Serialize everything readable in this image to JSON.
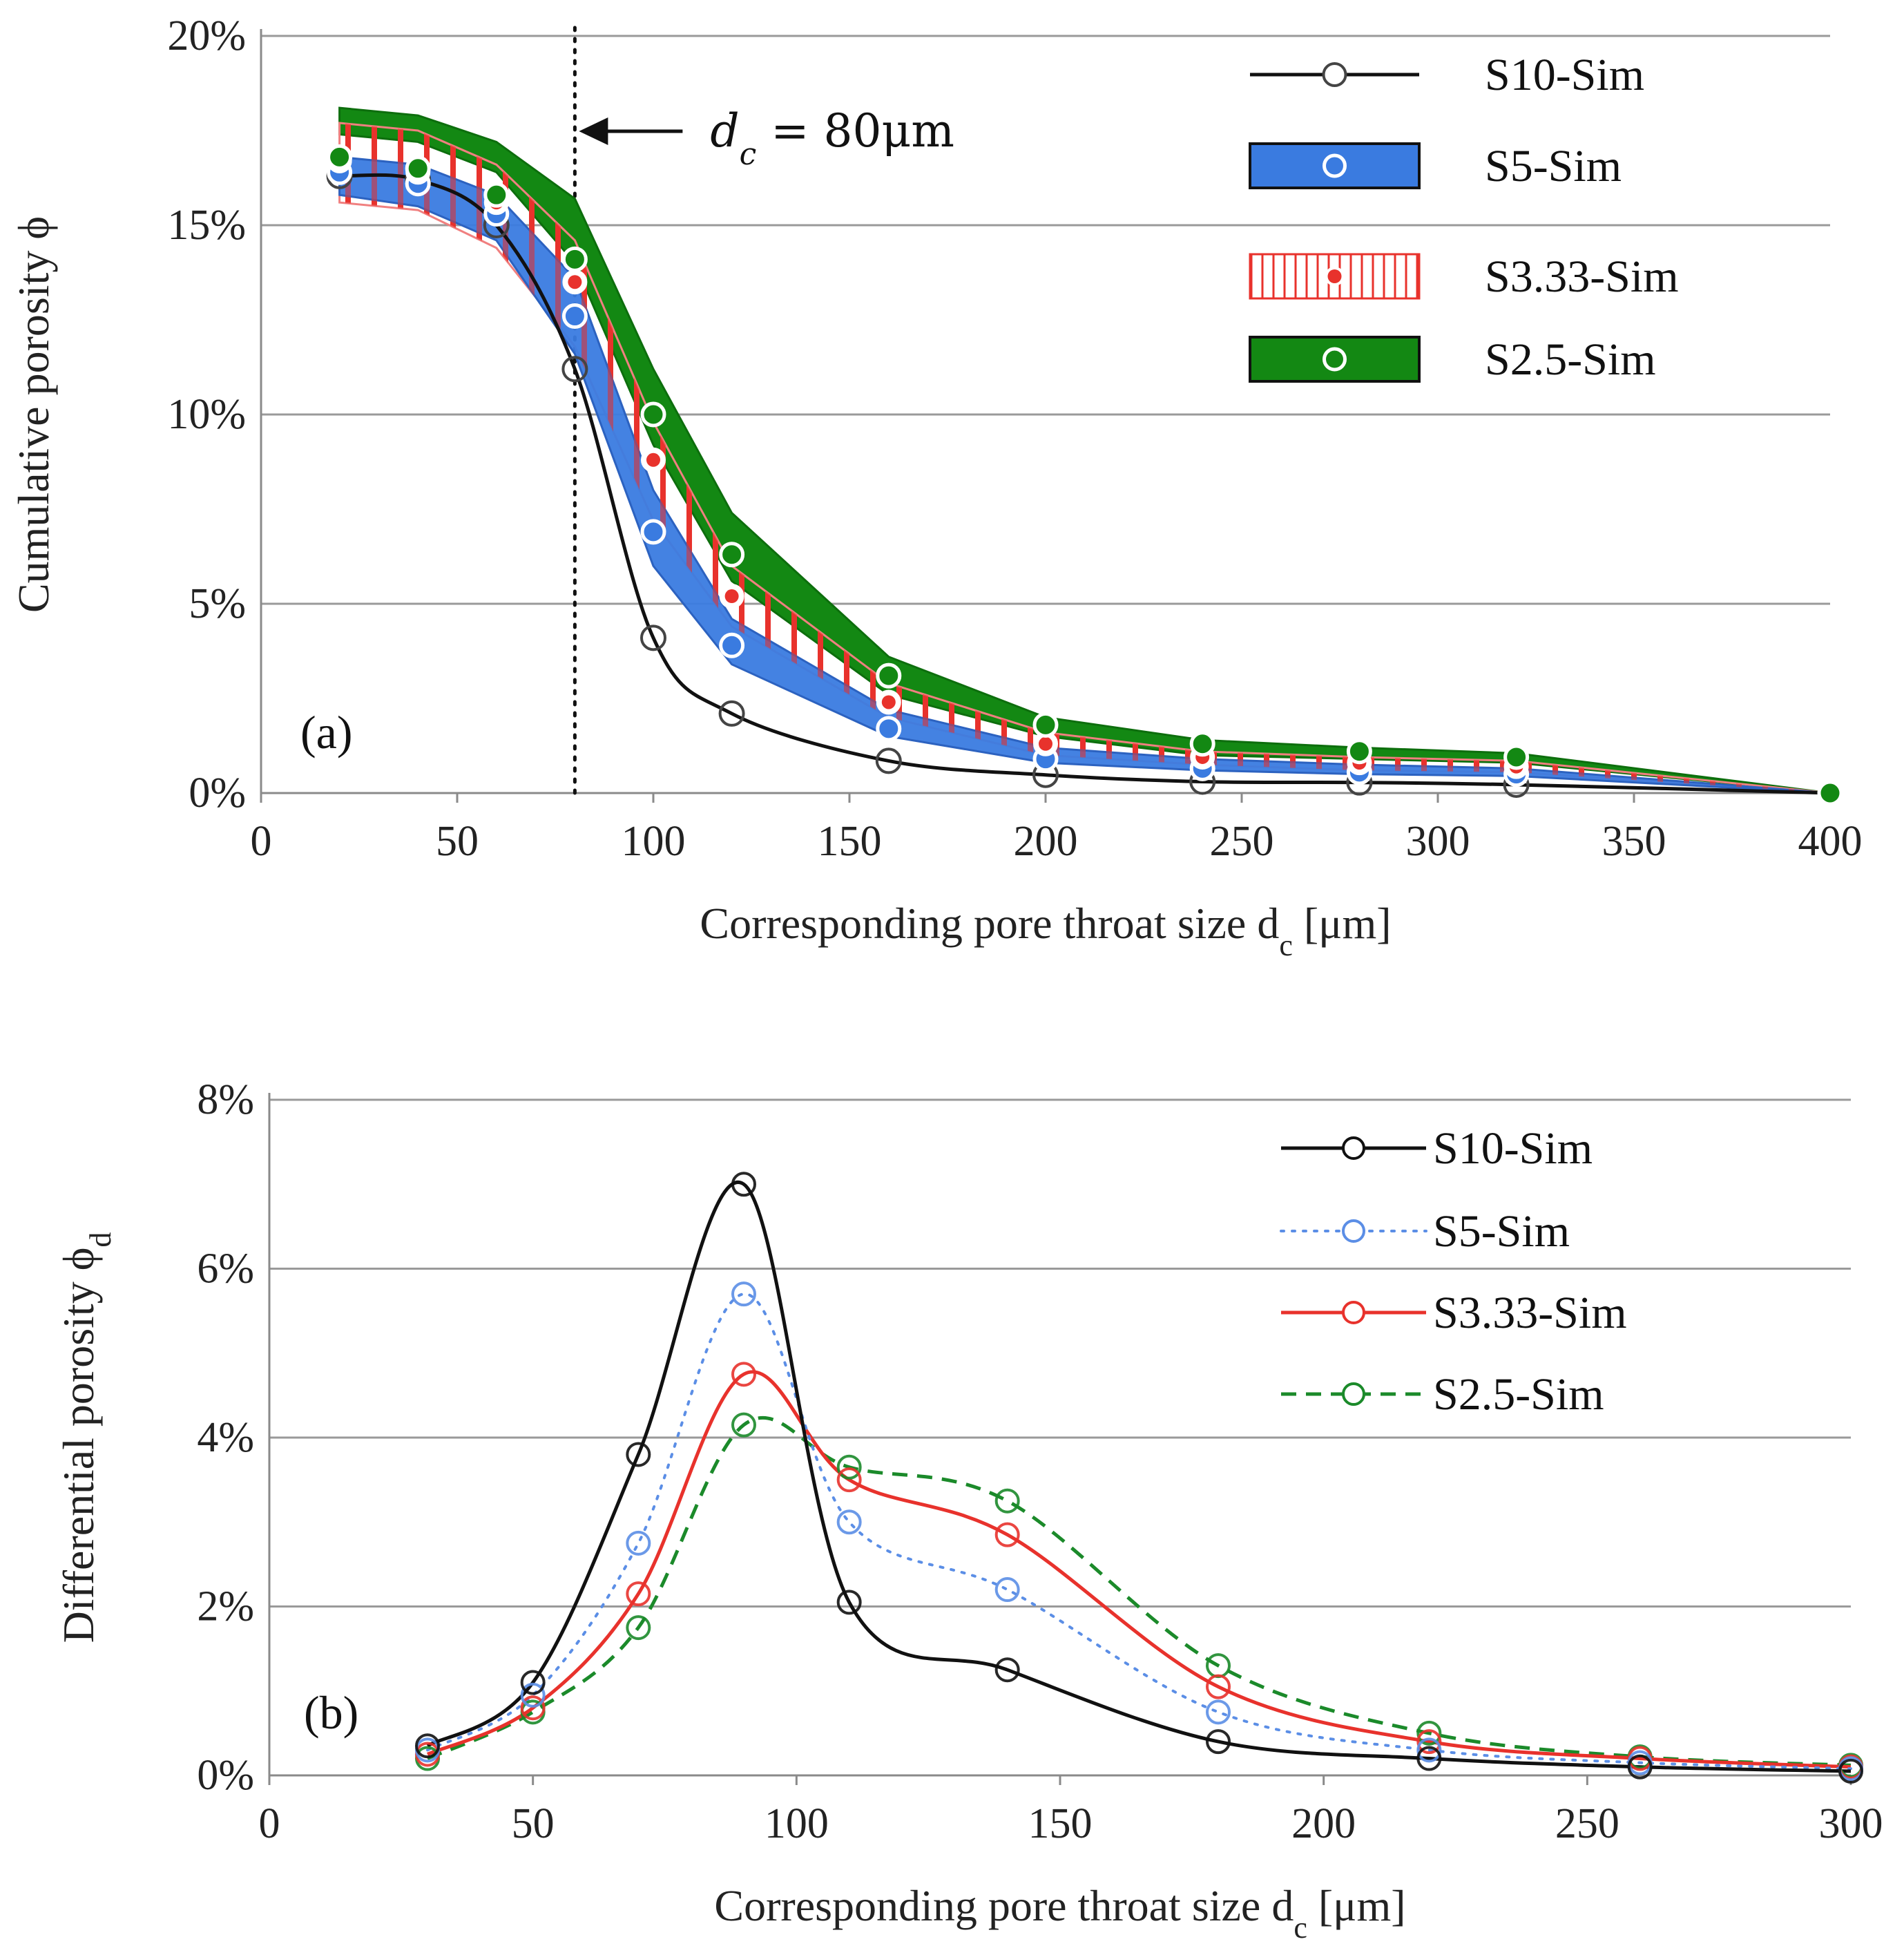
{
  "chart_data": [
    {
      "type": "area",
      "panel_label": "(a)",
      "xlabel": "Corresponding pore throat size d",
      "xlabel_sub": "c",
      "xlabel_unit": " [μm]",
      "ylabel": "Cumulative porosity ϕ",
      "xlim": [
        0,
        400
      ],
      "ylim": [
        0,
        20
      ],
      "xticks": [
        0,
        50,
        100,
        150,
        200,
        250,
        300,
        350,
        400
      ],
      "yticks": [
        0,
        5,
        10,
        15,
        20
      ],
      "ytick_labels": [
        "0%",
        "5%",
        "10%",
        "15%",
        "20%"
      ],
      "grid": "horizontal",
      "annotation": {
        "x": 80,
        "text": "d",
        "sub": "c",
        "rest": " = 80μm"
      },
      "x": [
        20,
        40,
        60,
        80,
        100,
        120,
        160,
        200,
        240,
        280,
        320,
        400
      ],
      "series": [
        {
          "name": "S10-Sim",
          "style": "line",
          "values": [
            16.3,
            16.2,
            15.0,
            11.2,
            4.1,
            2.1,
            0.85,
            0.48,
            0.3,
            0.28,
            0.22,
            0.0
          ]
        },
        {
          "name": "S5-Sim",
          "style": "band",
          "color": "#3a7be0",
          "lower": [
            15.8,
            15.5,
            14.6,
            11.6,
            6.0,
            3.4,
            1.5,
            0.8,
            0.6,
            0.5,
            0.45,
            0.0
          ],
          "upper": [
            16.8,
            16.6,
            15.8,
            13.6,
            8.0,
            4.6,
            2.2,
            1.2,
            0.9,
            0.75,
            0.65,
            0.0
          ],
          "markers": [
            16.4,
            16.1,
            15.3,
            12.6,
            6.9,
            3.9,
            1.7,
            0.9,
            0.65,
            0.55,
            0.5,
            0.0
          ]
        },
        {
          "name": "S3.33-Sim",
          "style": "hatched",
          "color": "#e8322c",
          "lower": [
            15.6,
            15.4,
            14.4,
            11.8,
            7.2,
            4.4,
            2.0,
            1.0,
            0.75,
            0.6,
            0.55,
            0.0
          ],
          "upper": [
            17.7,
            17.5,
            16.6,
            14.6,
            9.8,
            6.0,
            2.9,
            1.6,
            1.1,
            0.95,
            0.85,
            0.0
          ],
          "markers": [
            16.7,
            16.4,
            15.6,
            13.5,
            8.8,
            5.2,
            2.4,
            1.3,
            0.95,
            0.8,
            0.7,
            0.0
          ]
        },
        {
          "name": "S2.5-Sim",
          "style": "band",
          "color": "#138813",
          "lower": [
            17.4,
            17.2,
            16.4,
            14.0,
            9.2,
            5.6,
            2.6,
            1.5,
            1.0,
            0.9,
            0.8,
            0.0
          ],
          "upper": [
            18.1,
            17.9,
            17.2,
            15.7,
            11.2,
            7.4,
            3.6,
            2.0,
            1.4,
            1.2,
            1.05,
            0.0
          ],
          "markers": [
            16.8,
            16.5,
            15.8,
            14.1,
            10.0,
            6.3,
            3.1,
            1.8,
            1.3,
            1.1,
            0.95,
            0.0
          ]
        }
      ]
    },
    {
      "type": "line",
      "panel_label": "(b)",
      "xlabel": "Corresponding pore throat size d",
      "xlabel_sub": "c",
      "xlabel_unit": " [μm]",
      "ylabel": "Differential  porosity ϕ",
      "ylabel_sub": "d",
      "xlim": [
        0,
        300
      ],
      "ylim": [
        0,
        8
      ],
      "xticks": [
        0,
        50,
        100,
        150,
        200,
        250,
        300
      ],
      "yticks": [
        0,
        2,
        4,
        6,
        8
      ],
      "ytick_labels": [
        "0%",
        "2%",
        "4%",
        "6%",
        "8%"
      ],
      "grid": "horizontal",
      "x": [
        30,
        50,
        70,
        90,
        110,
        140,
        180,
        220,
        260,
        300
      ],
      "series": [
        {
          "name": "S10-Sim",
          "color": "#111111",
          "dash": "",
          "values": [
            0.35,
            1.1,
            3.8,
            7.0,
            2.05,
            1.25,
            0.4,
            0.2,
            0.1,
            0.05
          ]
        },
        {
          "name": "S5-Sim",
          "color": "#5b8ee6",
          "dash": "4 12",
          "values": [
            0.3,
            0.95,
            2.75,
            5.7,
            3.0,
            2.2,
            0.75,
            0.3,
            0.15,
            0.08
          ]
        },
        {
          "name": "S3.33-Sim",
          "color": "#e8322c",
          "dash": "",
          "values": [
            0.25,
            0.8,
            2.15,
            4.75,
            3.5,
            2.85,
            1.05,
            0.4,
            0.2,
            0.1
          ]
        },
        {
          "name": "S2.5-Sim",
          "color": "#1b8a2a",
          "dash": "22 14",
          "values": [
            0.2,
            0.75,
            1.75,
            4.15,
            3.65,
            3.25,
            1.3,
            0.5,
            0.22,
            0.12
          ]
        }
      ]
    }
  ]
}
